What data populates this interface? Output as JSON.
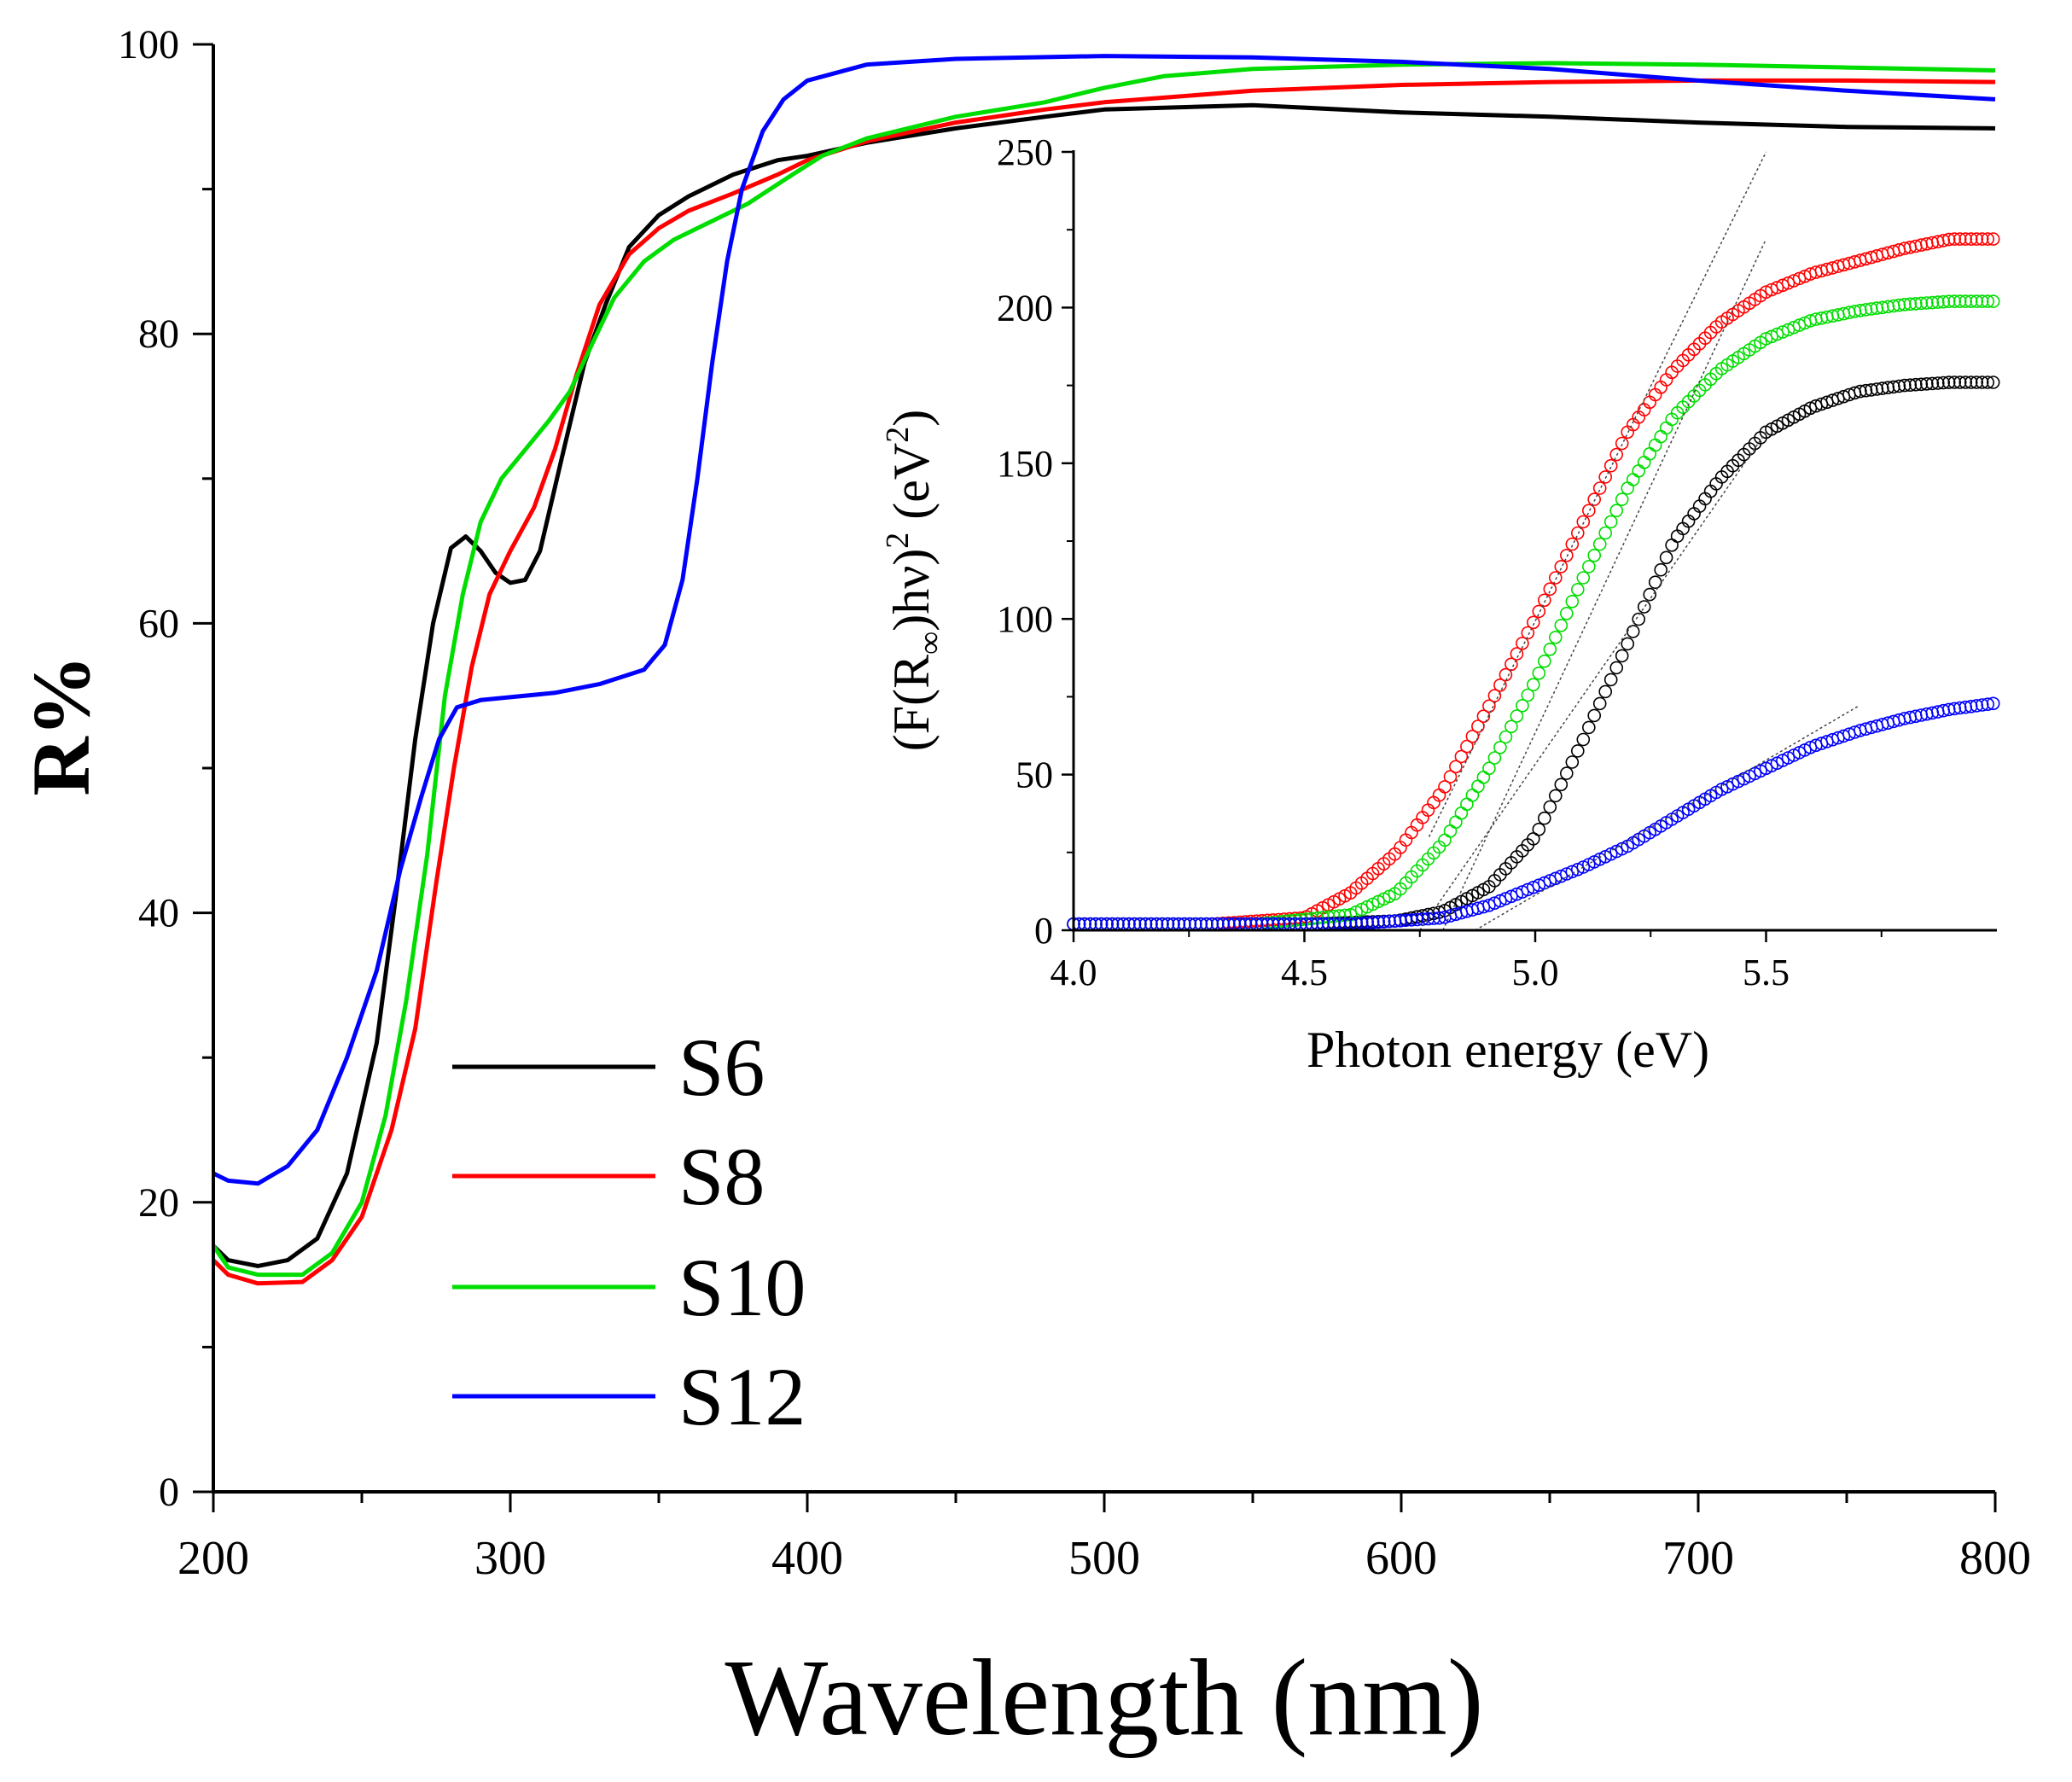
{
  "chart_data": [
    {
      "id": "main",
      "type": "line",
      "title": "",
      "xlabel": "Wavelength (nm)",
      "ylabel": "R%",
      "xlim": [
        200,
        800
      ],
      "ylim": [
        0,
        100
      ],
      "xticks": [
        200,
        300,
        400,
        500,
        600,
        700,
        800
      ],
      "yticks": [
        0,
        20,
        40,
        60,
        80,
        100
      ],
      "x_minor_step": 50,
      "y_minor_step": 10,
      "grid": false,
      "legend_position": "lower-left",
      "series": [
        {
          "name": "S6",
          "color": "#000000",
          "points": [
            [
              200,
              17
            ],
            [
              205,
              16
            ],
            [
              215,
              15.6
            ],
            [
              225,
              16
            ],
            [
              235,
              17.5
            ],
            [
              245,
              22
            ],
            [
              255,
              31
            ],
            [
              262,
              42
            ],
            [
              268,
              52
            ],
            [
              274,
              60
            ],
            [
              280,
              65.2
            ],
            [
              285,
              66
            ],
            [
              290,
              65
            ],
            [
              295,
              63.5
            ],
            [
              300,
              62.8
            ],
            [
              305,
              63
            ],
            [
              310,
              65
            ],
            [
              318,
              72
            ],
            [
              325,
              78
            ],
            [
              332,
              82
            ],
            [
              340,
              86
            ],
            [
              350,
              88.2
            ],
            [
              360,
              89.5
            ],
            [
              375,
              91
            ],
            [
              390,
              92
            ],
            [
              400,
              92.3
            ],
            [
              420,
              93.2
            ],
            [
              450,
              94.2
            ],
            [
              480,
              95
            ],
            [
              500,
              95.5
            ],
            [
              550,
              95.8
            ],
            [
              600,
              95.3
            ],
            [
              650,
              95
            ],
            [
              700,
              94.6
            ],
            [
              750,
              94.3
            ],
            [
              800,
              94.2
            ]
          ]
        },
        {
          "name": "S8",
          "color": "#ff0000",
          "points": [
            [
              200,
              16
            ],
            [
              205,
              15
            ],
            [
              215,
              14.4
            ],
            [
              230,
              14.5
            ],
            [
              240,
              16
            ],
            [
              250,
              19
            ],
            [
              260,
              25
            ],
            [
              268,
              32
            ],
            [
              275,
              42
            ],
            [
              281,
              50
            ],
            [
              287,
              57
            ],
            [
              293,
              62
            ],
            [
              300,
              65
            ],
            [
              308,
              68
            ],
            [
              315,
              72
            ],
            [
              322,
              77
            ],
            [
              330,
              82
            ],
            [
              340,
              85.5
            ],
            [
              350,
              87.3
            ],
            [
              360,
              88.5
            ],
            [
              375,
              89.7
            ],
            [
              390,
              91
            ],
            [
              400,
              92
            ],
            [
              420,
              93.3
            ],
            [
              450,
              94.6
            ],
            [
              480,
              95.5
            ],
            [
              500,
              96
            ],
            [
              550,
              96.8
            ],
            [
              600,
              97.2
            ],
            [
              650,
              97.4
            ],
            [
              700,
              97.5
            ],
            [
              750,
              97.5
            ],
            [
              800,
              97.4
            ]
          ]
        },
        {
          "name": "S10",
          "color": "#00dd00",
          "points": [
            [
              200,
              17
            ],
            [
              205,
              15.5
            ],
            [
              215,
              15
            ],
            [
              230,
              15
            ],
            [
              240,
              16.5
            ],
            [
              250,
              20
            ],
            [
              258,
              26
            ],
            [
              265,
              34
            ],
            [
              272,
              44
            ],
            [
              278,
              55
            ],
            [
              284,
              62
            ],
            [
              290,
              67
            ],
            [
              297,
              70
            ],
            [
              305,
              72
            ],
            [
              313,
              74
            ],
            [
              320,
              76
            ],
            [
              328,
              79.5
            ],
            [
              335,
              82.5
            ],
            [
              345,
              85
            ],
            [
              355,
              86.5
            ],
            [
              365,
              87.5
            ],
            [
              380,
              89
            ],
            [
              395,
              91
            ],
            [
              405,
              92.3
            ],
            [
              420,
              93.5
            ],
            [
              450,
              95
            ],
            [
              480,
              96
            ],
            [
              500,
              97
            ],
            [
              520,
              97.8
            ],
            [
              550,
              98.3
            ],
            [
              600,
              98.6
            ],
            [
              650,
              98.7
            ],
            [
              700,
              98.6
            ],
            [
              750,
              98.4
            ],
            [
              800,
              98.2
            ]
          ]
        },
        {
          "name": "S12",
          "color": "#0000ff",
          "points": [
            [
              200,
              22
            ],
            [
              205,
              21.5
            ],
            [
              215,
              21.3
            ],
            [
              225,
              22.5
            ],
            [
              235,
              25
            ],
            [
              245,
              30
            ],
            [
              255,
              36
            ],
            [
              263,
              43
            ],
            [
              270,
              48
            ],
            [
              276,
              52
            ],
            [
              282,
              54.2
            ],
            [
              290,
              54.7
            ],
            [
              300,
              54.9
            ],
            [
              315,
              55.2
            ],
            [
              330,
              55.8
            ],
            [
              345,
              56.8
            ],
            [
              352,
              58.5
            ],
            [
              358,
              63
            ],
            [
              363,
              70
            ],
            [
              368,
              78
            ],
            [
              373,
              85
            ],
            [
              378,
              90
            ],
            [
              385,
              94
            ],
            [
              392,
              96.2
            ],
            [
              400,
              97.5
            ],
            [
              420,
              98.6
            ],
            [
              450,
              99
            ],
            [
              500,
              99.2
            ],
            [
              550,
              99.1
            ],
            [
              600,
              98.8
            ],
            [
              650,
              98.3
            ],
            [
              700,
              97.5
            ],
            [
              750,
              96.8
            ],
            [
              800,
              96.2
            ]
          ]
        }
      ]
    },
    {
      "id": "inset",
      "type": "scatter",
      "title": "",
      "xlabel": "Photon energy (eV)",
      "ylabel_parts": {
        "prefix": "(F(R",
        "subscript": "∞",
        "middle": ")hν)",
        "superscript": "2",
        "unit_prefix": " (eV",
        "unit_superscript": "2",
        "unit_suffix": ")"
      },
      "xlim": [
        4.0,
        6.0
      ],
      "ylim": [
        0,
        250
      ],
      "xticks": [
        4.0,
        4.5,
        5.0,
        5.5
      ],
      "xtick_labels": [
        "4.0",
        "4.5",
        "5.0",
        "5.5"
      ],
      "yticks": [
        0,
        50,
        100,
        150,
        200,
        250
      ],
      "grid": false,
      "marker": "open-circle",
      "series": [
        {
          "name": "S6",
          "color": "#000000",
          "points": [
            [
              4.0,
              2
            ],
            [
              4.5,
              2
            ],
            [
              4.7,
              3
            ],
            [
              4.8,
              6
            ],
            [
              4.9,
              14
            ],
            [
              5.0,
              30
            ],
            [
              5.1,
              60
            ],
            [
              5.2,
              92
            ],
            [
              5.3,
              125
            ],
            [
              5.4,
              145
            ],
            [
              5.5,
              160
            ],
            [
              5.6,
              168
            ],
            [
              5.7,
              173
            ],
            [
              5.8,
              175
            ],
            [
              5.9,
              176
            ],
            [
              6.0,
              176
            ]
          ],
          "fit_line": [
            [
              4.75,
              0
            ],
            [
              5.5,
              160
            ]
          ]
        },
        {
          "name": "S8",
          "color": "#ff0000",
          "points": [
            [
              4.0,
              2
            ],
            [
              4.3,
              2
            ],
            [
              4.5,
              4
            ],
            [
              4.6,
              12
            ],
            [
              4.7,
              25
            ],
            [
              4.8,
              45
            ],
            [
              4.9,
              72
            ],
            [
              5.0,
              100
            ],
            [
              5.1,
              130
            ],
            [
              5.2,
              160
            ],
            [
              5.3,
              180
            ],
            [
              5.4,
              195
            ],
            [
              5.5,
              205
            ],
            [
              5.6,
              211
            ],
            [
              5.7,
              215
            ],
            [
              5.8,
              219
            ],
            [
              5.9,
              222
            ],
            [
              6.0,
              222
            ]
          ],
          "fit_line": [
            [
              4.77,
              30
            ],
            [
              5.5,
              250
            ]
          ]
        },
        {
          "name": "S10",
          "color": "#00dd00",
          "points": [
            [
              4.0,
              2
            ],
            [
              4.4,
              2
            ],
            [
              4.6,
              5
            ],
            [
              4.7,
              12
            ],
            [
              4.8,
              28
            ],
            [
              4.9,
              52
            ],
            [
              5.0,
              80
            ],
            [
              5.1,
              112
            ],
            [
              5.2,
              142
            ],
            [
              5.3,
              165
            ],
            [
              5.4,
              180
            ],
            [
              5.5,
              190
            ],
            [
              5.6,
              196
            ],
            [
              5.7,
              199
            ],
            [
              5.8,
              201
            ],
            [
              5.9,
              202
            ],
            [
              6.0,
              202
            ]
          ],
          "fit_line": [
            [
              4.8,
              0
            ],
            [
              5.5,
              222
            ]
          ]
        },
        {
          "name": "S12",
          "color": "#0000ff",
          "points": [
            [
              4.0,
              2
            ],
            [
              4.6,
              2
            ],
            [
              4.8,
              4
            ],
            [
              4.9,
              8
            ],
            [
              5.0,
              14
            ],
            [
              5.1,
              20
            ],
            [
              5.2,
              27
            ],
            [
              5.3,
              36
            ],
            [
              5.4,
              45
            ],
            [
              5.5,
              52
            ],
            [
              5.6,
              59
            ],
            [
              5.7,
              64
            ],
            [
              5.8,
              68
            ],
            [
              5.9,
              71
            ],
            [
              6.0,
              73
            ]
          ],
          "fit_line": [
            [
              4.87,
              0
            ],
            [
              5.7,
              72
            ]
          ]
        }
      ]
    }
  ]
}
